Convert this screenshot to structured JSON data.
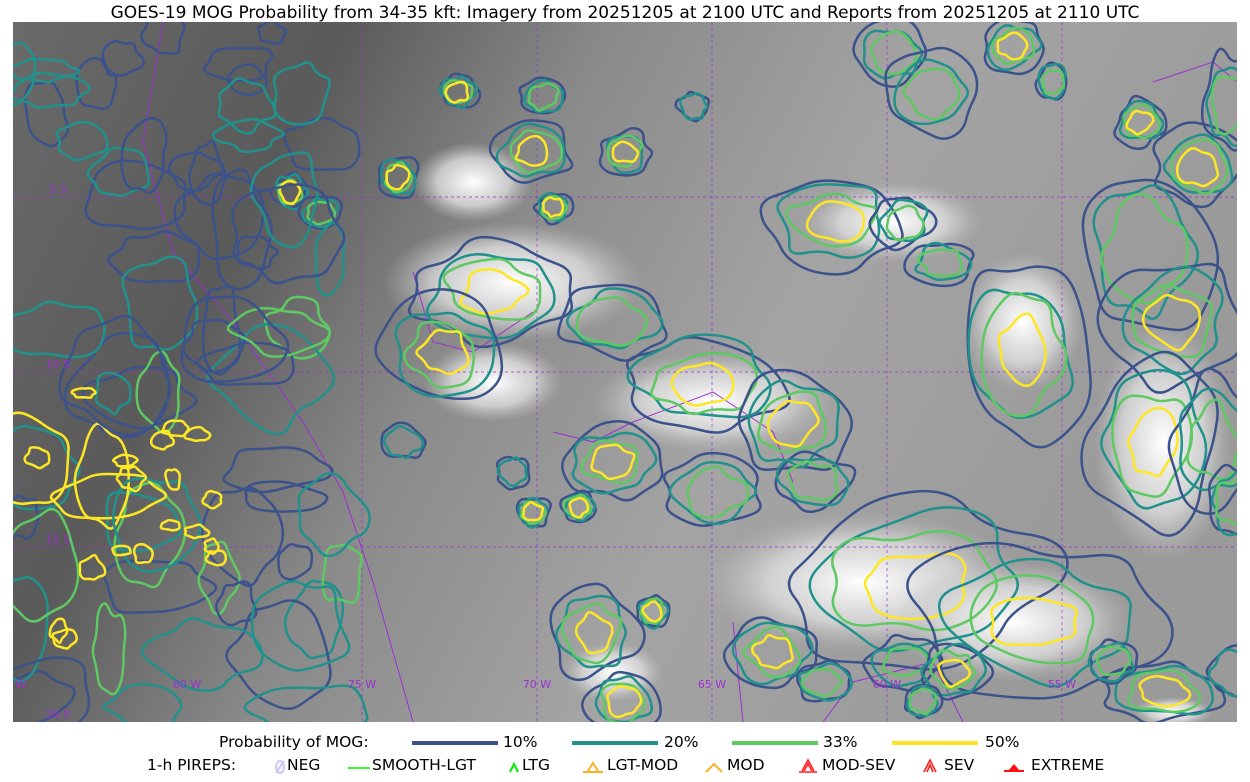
{
  "title": "GOES-19 MOG Probability from 34-35 kft: Imagery from 20251205 at 2100 UTC and Reports from 20251205 at 2110 UTC",
  "map": {
    "longitude_labels": [
      "85 W",
      "80 W",
      "75 W",
      "70 W",
      "65 W",
      "60 W",
      "55 W"
    ],
    "latitude_labels": [
      "5 S",
      "10 S",
      "15 S",
      "20 S"
    ],
    "gridline_color": "#9b30d0",
    "border_color": "#9b30d0"
  },
  "legend": {
    "probability_label": "Probability of MOG:",
    "levels": [
      {
        "label": "10%",
        "color": "#3b528b"
      },
      {
        "label": "20%",
        "color": "#21918c"
      },
      {
        "label": "33%",
        "color": "#5ec962"
      },
      {
        "label": "50%",
        "color": "#fde725"
      }
    ],
    "pireps_label": "1-h PIREPS:",
    "pireps": [
      {
        "label": "NEG",
        "icon": "neg-slash-circle-icon",
        "color": "#c8c8ff"
      },
      {
        "label": "SMOOTH-LGT",
        "icon": "line-icon",
        "color": "#32ff32"
      },
      {
        "label": "LTG",
        "icon": "caret-icon",
        "color": "#00ee00"
      },
      {
        "label": "LGT-MOD",
        "icon": "caret-bar-icon",
        "color": "#ffb020"
      },
      {
        "label": "MOD",
        "icon": "caret-icon",
        "color": "#ffb020"
      },
      {
        "label": "MOD-SEV",
        "icon": "double-caret-bar-icon",
        "color": "#ff2020"
      },
      {
        "label": "SEV",
        "icon": "double-caret-icon",
        "color": "#ff2020"
      },
      {
        "label": "EXTREME",
        "icon": "filled-triangle-icon",
        "color": "#ff1010"
      }
    ]
  }
}
